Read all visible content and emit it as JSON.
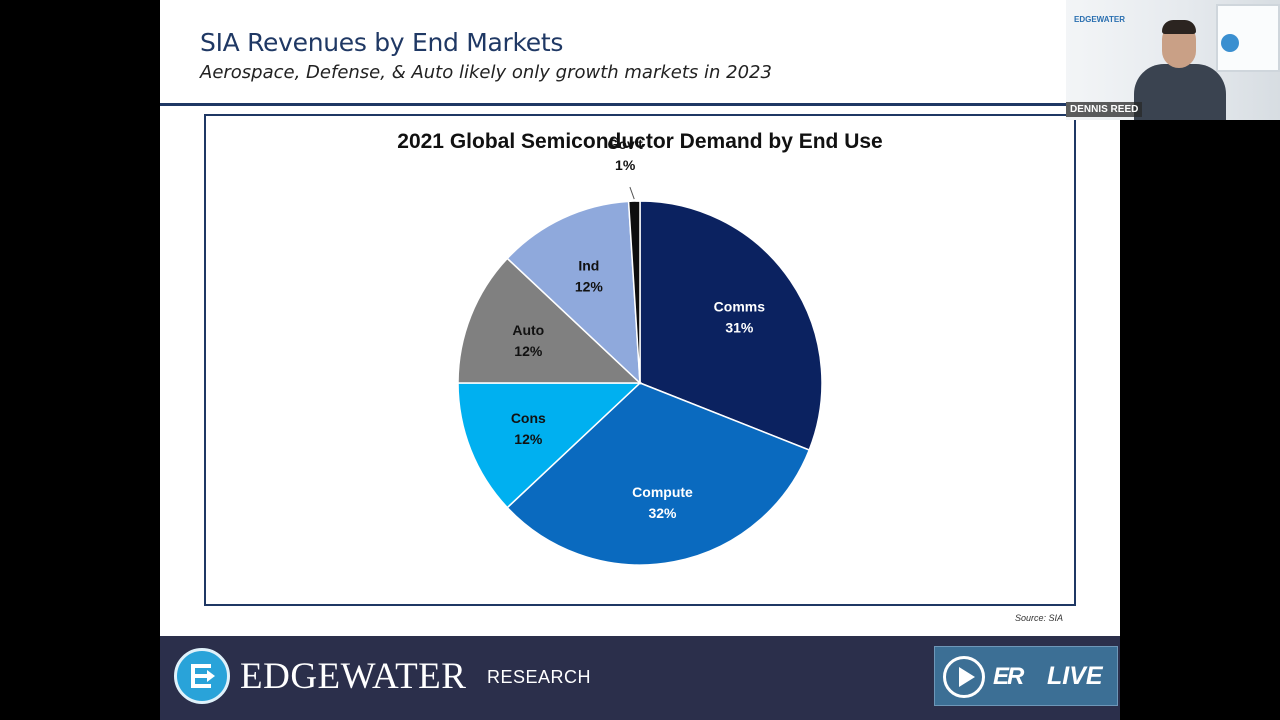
{
  "slide": {
    "title": "SIA Revenues by End Markets",
    "subtitle": "Aerospace, Defense, & Auto likely only growth markets in 2023",
    "source": "Source: SIA"
  },
  "chart_data": {
    "type": "pie",
    "title": "2021 Global Semiconductor Demand by End Use",
    "slices": [
      {
        "label": "Comms",
        "value": 31,
        "text": "31%",
        "color": "#0b2260",
        "text_color": "#ffffff"
      },
      {
        "label": "Compute",
        "value": 32,
        "text": "32%",
        "color": "#0a6abf",
        "text_color": "#ffffff"
      },
      {
        "label": "Cons",
        "value": 12,
        "text": "12%",
        "color": "#00b0f0",
        "text_color": "#111111"
      },
      {
        "label": "Auto",
        "value": 12,
        "text": "12%",
        "color": "#808080",
        "text_color": "#111111"
      },
      {
        "label": "Ind",
        "value": 12,
        "text": "12%",
        "color": "#8fa9dc",
        "text_color": "#111111"
      },
      {
        "label": "Gov't",
        "value": 1,
        "text": "1%",
        "color": "#0d0d0d",
        "text_color": "#111111"
      }
    ],
    "start": "12 o'clock",
    "direction": "clockwise"
  },
  "footer": {
    "brand": "EDGEWATER",
    "brand_sub": "RESEARCH",
    "live_mark": "ER",
    "live_text": "LIVE"
  },
  "webcam": {
    "name": "DENNIS REED",
    "wall_logo": "EDGEWATER"
  }
}
